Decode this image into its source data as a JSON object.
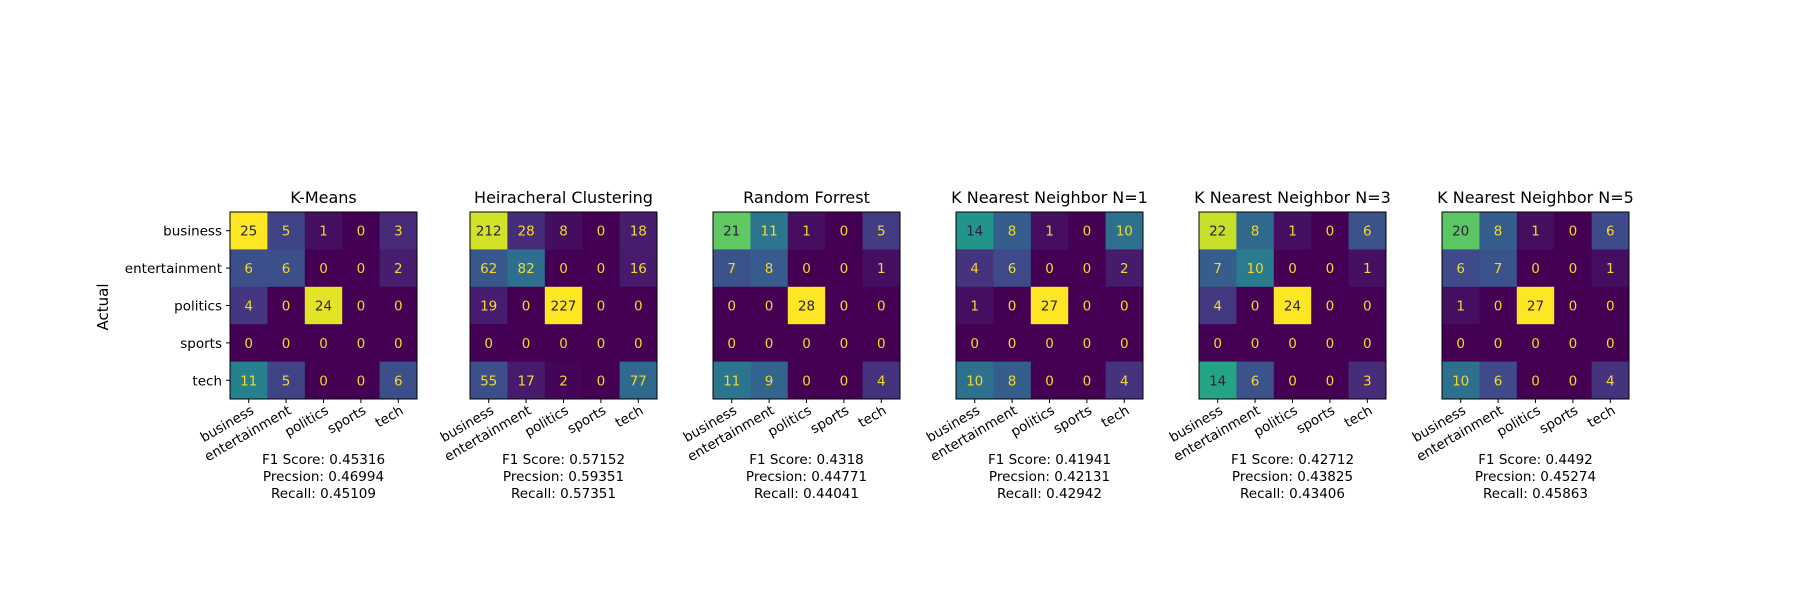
{
  "figure": {
    "ylabel": "Actual"
  },
  "chart_data": [
    {
      "type": "heatmap",
      "title": "K-Means",
      "x_categories": [
        "business",
        "entertainment",
        "politics",
        "sports",
        "tech"
      ],
      "y_categories": [
        "business",
        "entertainment",
        "politics",
        "sports",
        "tech"
      ],
      "values": [
        [
          25,
          5,
          1,
          0,
          3
        ],
        [
          6,
          6,
          0,
          0,
          2
        ],
        [
          4,
          0,
          24,
          0,
          0
        ],
        [
          0,
          0,
          0,
          0,
          0
        ],
        [
          11,
          5,
          0,
          0,
          6
        ]
      ],
      "metrics": [
        "F1 Score: 0.45316",
        "Precsion: 0.46994",
        "Recall: 0.45109"
      ]
    },
    {
      "type": "heatmap",
      "title": "Heiracheral Clustering",
      "x_categories": [
        "business",
        "entertainment",
        "politics",
        "sports",
        "tech"
      ],
      "y_categories": [
        "business",
        "entertainment",
        "politics",
        "sports",
        "tech"
      ],
      "values": [
        [
          212,
          28,
          8,
          0,
          18
        ],
        [
          62,
          82,
          0,
          0,
          16
        ],
        [
          19,
          0,
          227,
          0,
          0
        ],
        [
          0,
          0,
          0,
          0,
          0
        ],
        [
          55,
          17,
          2,
          0,
          77
        ]
      ],
      "metrics": [
        "F1 Score: 0.57152",
        "Precsion: 0.59351",
        "Recall: 0.57351"
      ]
    },
    {
      "type": "heatmap",
      "title": "Random Forrest",
      "x_categories": [
        "business",
        "entertainment",
        "politics",
        "sports",
        "tech"
      ],
      "y_categories": [
        "business",
        "entertainment",
        "politics",
        "sports",
        "tech"
      ],
      "values": [
        [
          21,
          11,
          1,
          0,
          5
        ],
        [
          7,
          8,
          0,
          0,
          1
        ],
        [
          0,
          0,
          28,
          0,
          0
        ],
        [
          0,
          0,
          0,
          0,
          0
        ],
        [
          11,
          9,
          0,
          0,
          4
        ]
      ],
      "metrics": [
        "F1 Score: 0.4318",
        "Precsion: 0.44771",
        "Recall: 0.44041"
      ]
    },
    {
      "type": "heatmap",
      "title": "K Nearest Neighbor N=1",
      "x_categories": [
        "business",
        "entertainment",
        "politics",
        "sports",
        "tech"
      ],
      "y_categories": [
        "business",
        "entertainment",
        "politics",
        "sports",
        "tech"
      ],
      "values": [
        [
          14,
          8,
          1,
          0,
          10
        ],
        [
          4,
          6,
          0,
          0,
          2
        ],
        [
          1,
          0,
          27,
          0,
          0
        ],
        [
          0,
          0,
          0,
          0,
          0
        ],
        [
          10,
          8,
          0,
          0,
          4
        ]
      ],
      "metrics": [
        "F1 Score: 0.41941",
        "Precsion: 0.42131",
        "Recall: 0.42942"
      ]
    },
    {
      "type": "heatmap",
      "title": "K Nearest Neighbor N=3",
      "x_categories": [
        "business",
        "entertainment",
        "politics",
        "sports",
        "tech"
      ],
      "y_categories": [
        "business",
        "entertainment",
        "politics",
        "sports",
        "tech"
      ],
      "values": [
        [
          22,
          8,
          1,
          0,
          6
        ],
        [
          7,
          10,
          0,
          0,
          1
        ],
        [
          4,
          0,
          24,
          0,
          0
        ],
        [
          0,
          0,
          0,
          0,
          0
        ],
        [
          14,
          6,
          0,
          0,
          3
        ]
      ],
      "metrics": [
        "F1 Score: 0.42712",
        "Precsion: 0.43825",
        "Recall: 0.43406"
      ]
    },
    {
      "type": "heatmap",
      "title": "K Nearest Neighbor N=5",
      "x_categories": [
        "business",
        "entertainment",
        "politics",
        "sports",
        "tech"
      ],
      "y_categories": [
        "business",
        "entertainment",
        "politics",
        "sports",
        "tech"
      ],
      "values": [
        [
          20,
          8,
          1,
          0,
          6
        ],
        [
          6,
          7,
          0,
          0,
          1
        ],
        [
          1,
          0,
          27,
          0,
          0
        ],
        [
          0,
          0,
          0,
          0,
          0
        ],
        [
          10,
          6,
          0,
          0,
          4
        ]
      ],
      "metrics": [
        "F1 Score: 0.4492",
        "Precsion: 0.45274",
        "Recall: 0.45863"
      ]
    }
  ]
}
